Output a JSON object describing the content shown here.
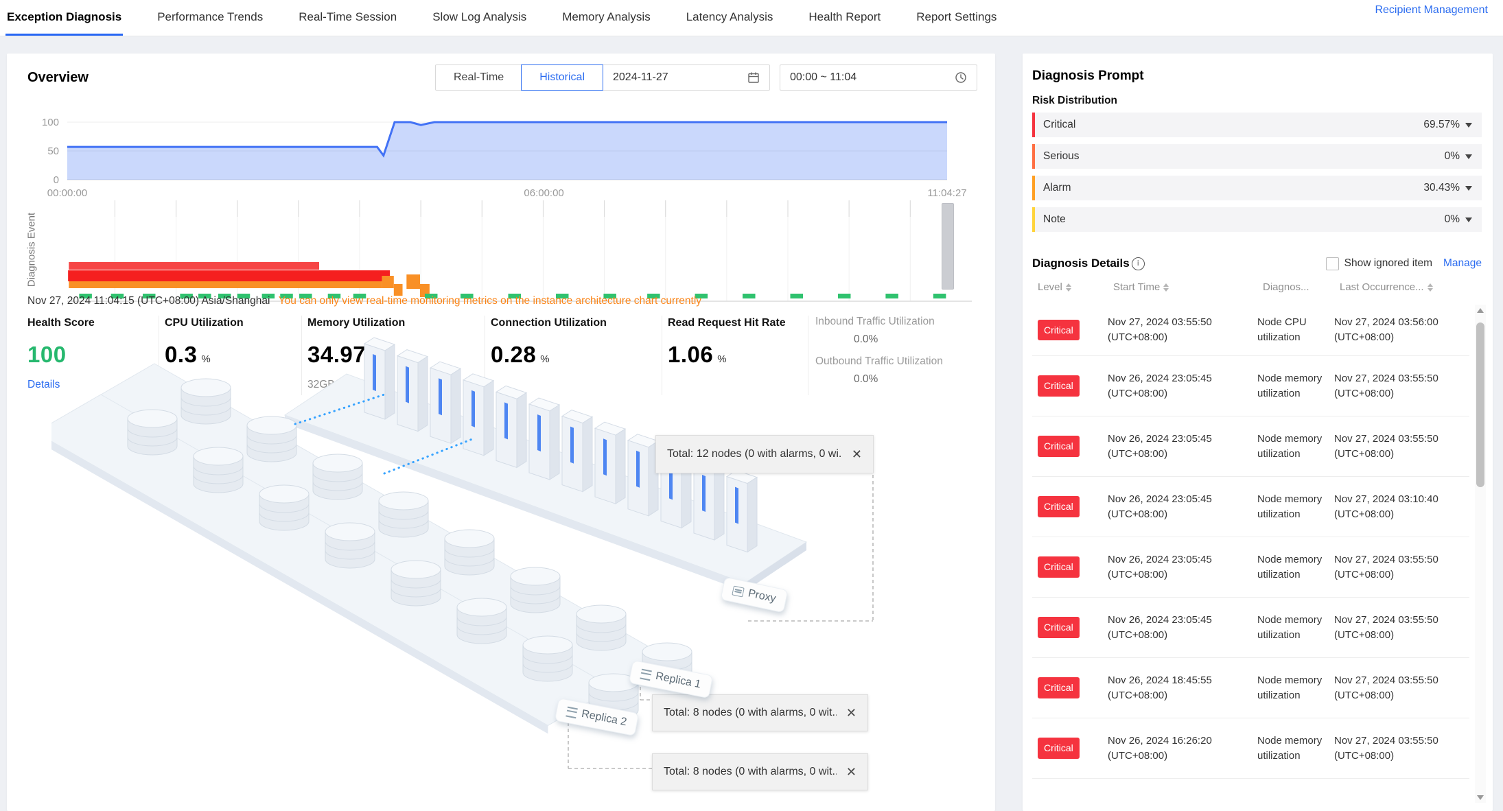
{
  "nav": {
    "tabs": [
      {
        "label": "Exception Diagnosis",
        "active": true
      },
      {
        "label": "Performance Trends",
        "active": false
      },
      {
        "label": "Real-Time Session",
        "active": false
      },
      {
        "label": "Slow Log Analysis",
        "active": false
      },
      {
        "label": "Memory Analysis",
        "active": false
      },
      {
        "label": "Latency Analysis",
        "active": false
      },
      {
        "label": "Health Report",
        "active": false
      },
      {
        "label": "Report Settings",
        "active": false
      }
    ],
    "recipient_link": "Recipient Management"
  },
  "overview": {
    "title": "Overview",
    "mode_realtime": "Real-Time",
    "mode_historical": "Historical",
    "date": "2024-11-27",
    "time_range": "00:00 ~ 11:04",
    "timestamp_note": "Nov 27, 2024 11:04:15 (UTC+08:00) Asia/Shanghai",
    "warning_note": "You can only view real-time monitoring metrics on the instance architecture chart currently",
    "events_axis_label": "Diagnosis Event"
  },
  "chart_data": [
    {
      "type": "area",
      "title": "Overview trend",
      "x_ticks": [
        {
          "label": "00:00:00",
          "hour": 0
        },
        {
          "label": "06:00:00",
          "hour": 6
        },
        {
          "label": "11:04:27",
          "hour": 11.074
        }
      ],
      "y_ticks": [
        0,
        50,
        100
      ],
      "ylim": [
        0,
        100
      ],
      "x_max": 11.074,
      "series": [
        {
          "name": "overview",
          "points": [
            [
              0,
              57
            ],
            [
              3.9,
              57
            ],
            [
              3.98,
              42
            ],
            [
              4.12,
              100
            ],
            [
              4.32,
              100
            ],
            [
              4.45,
              95
            ],
            [
              4.62,
              100
            ],
            [
              11.074,
              100
            ]
          ]
        }
      ],
      "line_color": "#4272f5",
      "fill_color": "rgba(66,114,245,0.28)"
    },
    {
      "type": "gantt-events",
      "title": "Diagnosis Events",
      "x_max": 11.074,
      "bars": [
        {
          "start": 0.02,
          "end": 3.17,
          "y": 90,
          "h": 11,
          "color": "#f64545"
        },
        {
          "start": 0.01,
          "end": 4.06,
          "y": 102,
          "h": 16,
          "color": "#f51f1f"
        },
        {
          "start": 0.02,
          "end": 3.96,
          "y": 118,
          "h": 10,
          "color": "#f99026"
        },
        {
          "start": 3.96,
          "end": 4.11,
          "y": 110,
          "h": 18,
          "color": "#f99026"
        },
        {
          "start": 4.11,
          "end": 4.22,
          "y": 122,
          "h": 17,
          "color": "#f99026"
        },
        {
          "start": 4.27,
          "end": 4.44,
          "y": 108,
          "h": 21,
          "color": "#f99026"
        },
        {
          "start": 4.44,
          "end": 4.56,
          "y": 122,
          "h": 19,
          "color": "#f99026"
        }
      ],
      "normal_marks": [
        0.15,
        0.55,
        0.95,
        1.42,
        1.65,
        1.9,
        2.14,
        2.45,
        2.68,
        2.92,
        3.28,
        3.6,
        4.5,
        4.95,
        5.55,
        6.15,
        6.75,
        7.3,
        7.9,
        8.5,
        9.1,
        9.7,
        10.3,
        10.9
      ],
      "mark_width": 0.16,
      "mark_color": "#2fc26e",
      "gridline_hours": [
        0.6,
        1.37,
        2.14,
        2.91,
        3.68,
        4.45,
        5.22,
        5.99,
        6.76,
        7.53,
        8.3,
        9.07,
        9.84,
        10.61
      ]
    }
  ],
  "metrics": [
    {
      "label": "Health Score",
      "value": "100",
      "unit": "",
      "extra": "Details",
      "link": true,
      "value_color": "#26b86e"
    },
    {
      "label": "CPU Utilization",
      "value": "0.3",
      "unit": "%"
    },
    {
      "label": "Memory Utilization",
      "value": "34.97",
      "unit": "%",
      "extra": "32GB"
    },
    {
      "label": "Connection Utilization",
      "value": "0.28",
      "unit": "%"
    },
    {
      "label": "Read Request Hit Rate",
      "value": "1.06",
      "unit": "%"
    }
  ],
  "traffic_metrics": [
    {
      "label": "Inbound Traffic Utilization",
      "value": "0.0%"
    },
    {
      "label": "Outbound Traffic Utilization",
      "value": "0.0%"
    }
  ],
  "architecture": {
    "proxy_label": "Proxy",
    "replica1_label": "Replica 1",
    "replica2_label": "Replica 2",
    "tooltip_proxy": "Total: 12 nodes (0 with alarms, 0 wi...",
    "tooltip_replica1": "Total: 8 nodes (0 with alarms, 0 wit...",
    "tooltip_replica2": "Total: 8 nodes (0 with alarms, 0 wit...",
    "close_glyph": "✕"
  },
  "diagnosis": {
    "title": "Diagnosis Prompt",
    "risk_title": "Risk Distribution",
    "info_glyph": "i",
    "risks": [
      {
        "label": "Critical",
        "value": "69.57%",
        "color": "#f5333f"
      },
      {
        "label": "Serious",
        "value": "0%",
        "color": "#ff6f43"
      },
      {
        "label": "Alarm",
        "value": "30.43%",
        "color": "#ff9f23"
      },
      {
        "label": "Note",
        "value": "0%",
        "color": "#ffd43b"
      }
    ],
    "details_title": "Diagnosis Details",
    "show_ignored": "Show ignored item",
    "manage": "Manage",
    "columns": [
      {
        "label": "Level",
        "sort": true
      },
      {
        "label": "Start Time",
        "sort": true
      },
      {
        "label": "Diagnos...",
        "sort": false
      },
      {
        "label": "Last Occurrence...",
        "sort": true
      }
    ],
    "rows": [
      {
        "level": "Critical",
        "start": "Nov 27, 2024 03:55:50 (UTC+08:00)",
        "item": "Node CPU utilization",
        "last": "Nov 27, 2024 03:56:00 (UTC+08:00)"
      },
      {
        "level": "Critical",
        "start": "Nov 26, 2024 23:05:45 (UTC+08:00)",
        "item": "Node memory utilization",
        "last": "Nov 27, 2024 03:55:50 (UTC+08:00)"
      },
      {
        "level": "Critical",
        "start": "Nov 26, 2024 23:05:45 (UTC+08:00)",
        "item": "Node memory utilization",
        "last": "Nov 27, 2024 03:55:50 (UTC+08:00)"
      },
      {
        "level": "Critical",
        "start": "Nov 26, 2024 23:05:45 (UTC+08:00)",
        "item": "Node memory utilization",
        "last": "Nov 27, 2024 03:10:40 (UTC+08:00)"
      },
      {
        "level": "Critical",
        "start": "Nov 26, 2024 23:05:45 (UTC+08:00)",
        "item": "Node memory utilization",
        "last": "Nov 27, 2024 03:55:50 (UTC+08:00)"
      },
      {
        "level": "Critical",
        "start": "Nov 26, 2024 23:05:45 (UTC+08:00)",
        "item": "Node memory utilization",
        "last": "Nov 27, 2024 03:55:50 (UTC+08:00)"
      },
      {
        "level": "Critical",
        "start": "Nov 26, 2024 18:45:55 (UTC+08:00)",
        "item": "Node memory utilization",
        "last": "Nov 27, 2024 03:55:50 (UTC+08:00)"
      },
      {
        "level": "Critical",
        "start": "Nov 26, 2024 16:26:20 (UTC+08:00)",
        "item": "Node memory utilization",
        "last": "Nov 27, 2024 03:55:50 (UTC+08:00)"
      }
    ]
  }
}
